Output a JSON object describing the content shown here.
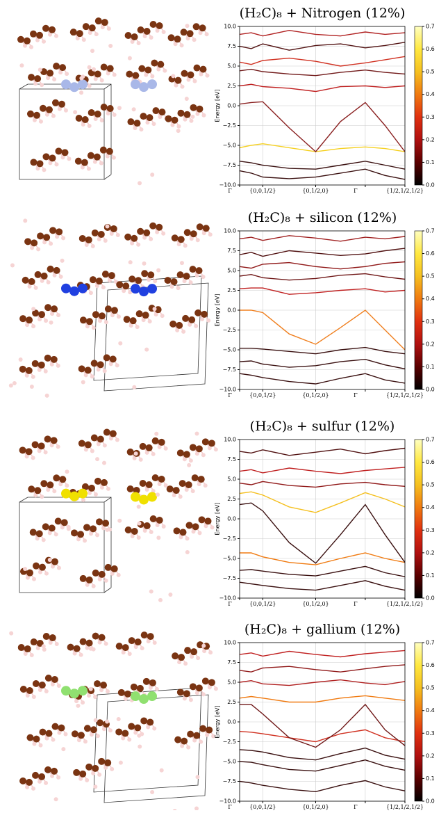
{
  "chart_data": [
    {
      "type": "line",
      "title": "(H₂C)₈ + Nitrogen (12%)",
      "ylabel": "Energy [eV]",
      "grid": true,
      "xlim": [
        0,
        1
      ],
      "ylim": [
        -10,
        10
      ],
      "xticks": [
        {
          "value": 0,
          "label": "Γ"
        },
        {
          "value": 0.14,
          "label": "{0,0,1/2}"
        },
        {
          "value": 0.46,
          "label": "{0,1/2,0}"
        },
        {
          "value": 0.76,
          "label": "Γ"
        },
        {
          "value": 1,
          "label": "{1/2,1/2,1/2}"
        }
      ],
      "yticks": [
        {
          "value": -10,
          "label": "−10.0"
        },
        {
          "value": -7.5,
          "label": "−7.5"
        },
        {
          "value": -5,
          "label": "−5.0"
        },
        {
          "value": -2.5,
          "label": "−2.5"
        },
        {
          "value": 0,
          "label": "0.0"
        },
        {
          "value": 2.5,
          "label": "2.5"
        },
        {
          "value": 5,
          "label": "5.0"
        },
        {
          "value": 7.5,
          "label": "7.5"
        },
        {
          "value": 10,
          "label": "10.0"
        }
      ],
      "colorbar": {
        "lim": [
          0,
          0.7
        ],
        "ticks": [
          {
            "value": 0,
            "label": "0.0"
          },
          0.1,
          0.2,
          0.3,
          0.4,
          0.5,
          0.6,
          0.7
        ],
        "colors": [
          "#000000",
          "#5a0000",
          "#b01010",
          "#e03010",
          "#f07a10",
          "#f5c020",
          "#ffe840",
          "#ffffc0"
        ]
      },
      "x": [
        0,
        0.07,
        0.14,
        0.3,
        0.46,
        0.61,
        0.76,
        0.88,
        1
      ],
      "series": [
        {
          "color": "#3a1010",
          "values": [
            -8.2,
            -8.5,
            -9,
            -9.2,
            -9,
            -8.5,
            -8,
            -8.8,
            -9.3
          ]
        },
        {
          "color": "#3a1010",
          "values": [
            -7,
            -7.2,
            -7.5,
            -7.9,
            -8,
            -7.5,
            -7,
            -7.5,
            -8
          ]
        },
        {
          "color": "#f5d020",
          "values": [
            -5.3,
            -5,
            -4.8,
            -5.3,
            -5.8,
            -5.4,
            -5.2,
            -5.4,
            -5.8
          ]
        },
        {
          "color": "#8a2020",
          "values": [
            0.2,
            0.4,
            0.5,
            -2.8,
            -5.8,
            -2,
            0.4,
            -2.5,
            -5.8
          ]
        },
        {
          "color": "#c02020",
          "values": [
            2.5,
            2.7,
            2.4,
            2.2,
            1.8,
            2.4,
            2.5,
            2.3,
            2.5
          ]
        },
        {
          "color": "#701818",
          "values": [
            4.4,
            4.6,
            4.3,
            4,
            3.8,
            4.2,
            4.5,
            4.2,
            4
          ]
        },
        {
          "color": "#d03020",
          "values": [
            5.5,
            5.2,
            5.7,
            6,
            5.6,
            5,
            5.4,
            5.8,
            6.2
          ]
        },
        {
          "color": "#501010",
          "values": [
            7.5,
            7.2,
            7.8,
            7,
            7.6,
            7.8,
            7.3,
            7.6,
            8
          ]
        },
        {
          "color": "#b02020",
          "values": [
            9,
            9.2,
            8.8,
            9.5,
            9,
            8.8,
            9.3,
            9,
            9.2
          ]
        }
      ]
    },
    {
      "type": "line",
      "title": "(H₂C)₈ + silicon (12%)",
      "ylabel": "Energy [eV]",
      "grid": true,
      "xlim": [
        0,
        1
      ],
      "ylim": [
        -10,
        10
      ],
      "xticks": [
        {
          "value": 0,
          "label": "Γ"
        },
        {
          "value": 0.14,
          "label": "{0,0,1/2}"
        },
        {
          "value": 0.46,
          "label": "{0,1/2,0}"
        },
        {
          "value": 0.76,
          "label": "Γ"
        },
        {
          "value": 1,
          "label": "{1/2,1/2,1/2}"
        }
      ],
      "yticks": [
        {
          "value": -10,
          "label": "−10.0"
        },
        {
          "value": -7.5,
          "label": "−7.5"
        },
        {
          "value": -5,
          "label": "−5.0"
        },
        {
          "value": -2.5,
          "label": "−2.5"
        },
        {
          "value": 0,
          "label": "0.0"
        },
        {
          "value": 2.5,
          "label": "2.5"
        },
        {
          "value": 5,
          "label": "5.0"
        },
        {
          "value": 7.5,
          "label": "7.5"
        },
        {
          "value": 10,
          "label": "10.0"
        }
      ],
      "colorbar": {
        "lim": [
          0,
          0.7
        ],
        "ticks": [
          {
            "value": 0,
            "label": "0.0"
          },
          0.1,
          0.2,
          0.3,
          0.4,
          0.5,
          0.6,
          0.7
        ],
        "colors": [
          "#000000",
          "#5a0000",
          "#b01010",
          "#e03010",
          "#f07a10",
          "#f5c020",
          "#ffe840",
          "#ffffc0"
        ]
      },
      "x": [
        0,
        0.07,
        0.14,
        0.3,
        0.46,
        0.61,
        0.76,
        0.88,
        1
      ],
      "series": [
        {
          "color": "#3a1010",
          "values": [
            -8,
            -8.2,
            -8.5,
            -9,
            -9.3,
            -8.6,
            -8,
            -8.8,
            -9.2
          ]
        },
        {
          "color": "#3a1010",
          "values": [
            -6.5,
            -6.4,
            -6.8,
            -7.2,
            -7,
            -6.5,
            -6.2,
            -6.9,
            -7.4
          ]
        },
        {
          "color": "#3a1010",
          "values": [
            -4.8,
            -4.8,
            -4.9,
            -5.2,
            -5.5,
            -5,
            -4.7,
            -5.2,
            -5.5
          ]
        },
        {
          "color": "#f08020",
          "values": [
            0,
            0,
            -0.3,
            -3,
            -4.3,
            -2.2,
            0,
            -2.5,
            -5
          ]
        },
        {
          "color": "#c02020",
          "values": [
            2.7,
            2.8,
            2.8,
            2,
            2.2,
            2.5,
            2.7,
            2.3,
            2.5
          ]
        },
        {
          "color": "#701818",
          "values": [
            4.3,
            4.5,
            4.1,
            3.8,
            4,
            4.4,
            4.6,
            4.2,
            3.9
          ]
        },
        {
          "color": "#901818",
          "values": [
            5.5,
            5.3,
            5.8,
            6,
            5.5,
            5.2,
            5.5,
            5.9,
            6.1
          ]
        },
        {
          "color": "#501010",
          "values": [
            7,
            7.3,
            6.8,
            7.5,
            7.2,
            6.9,
            7.1,
            7.5,
            7.8
          ]
        },
        {
          "color": "#a02020",
          "values": [
            9,
            9.2,
            8.8,
            9.4,
            9.1,
            8.7,
            9.2,
            9,
            9.3
          ]
        }
      ]
    },
    {
      "type": "line",
      "title": "(H₂C)₈ + sulfur (12%)",
      "ylabel": "Energy [eV]",
      "grid": true,
      "xlim": [
        0,
        1
      ],
      "ylim": [
        -10,
        10
      ],
      "xticks": [
        {
          "value": 0,
          "label": "Γ"
        },
        {
          "value": 0.14,
          "label": "{0,0,1/2}"
        },
        {
          "value": 0.46,
          "label": "{0,1/2,0}"
        },
        {
          "value": 0.76,
          "label": "Γ"
        },
        {
          "value": 1,
          "label": "{1/2,1/2,1/2}"
        }
      ],
      "yticks": [
        {
          "value": -10,
          "label": "−10.0"
        },
        {
          "value": -7.5,
          "label": "−7.5"
        },
        {
          "value": -5,
          "label": "−5.0"
        },
        {
          "value": -2.5,
          "label": "−2.5"
        },
        {
          "value": 0,
          "label": "0.0"
        },
        {
          "value": 2.5,
          "label": "2.5"
        },
        {
          "value": 5,
          "label": "5.0"
        },
        {
          "value": 7.5,
          "label": "7.5"
        },
        {
          "value": 10,
          "label": "10.0"
        }
      ],
      "colorbar": {
        "lim": [
          0,
          0.7
        ],
        "ticks": [
          {
            "value": 0,
            "label": "0.0"
          },
          0.1,
          0.2,
          0.3,
          0.4,
          0.5,
          0.6,
          0.7
        ],
        "colors": [
          "#000000",
          "#5a0000",
          "#b01010",
          "#e03010",
          "#f07a10",
          "#f5c020",
          "#ffe840",
          "#ffffc0"
        ]
      },
      "x": [
        0,
        0.07,
        0.14,
        0.3,
        0.46,
        0.61,
        0.76,
        0.88,
        1
      ],
      "series": [
        {
          "color": "#3a1010",
          "values": [
            -8,
            -8.2,
            -8.4,
            -8.8,
            -9,
            -8.4,
            -7.8,
            -8.5,
            -9
          ]
        },
        {
          "color": "#3a1010",
          "values": [
            -6.5,
            -6.4,
            -6.6,
            -7,
            -7.2,
            -6.6,
            -6,
            -6.8,
            -7.3
          ]
        },
        {
          "color": "#f07a10",
          "values": [
            -4.3,
            -4.3,
            -4.8,
            -5.5,
            -5.8,
            -5,
            -4.3,
            -5,
            -5.5
          ]
        },
        {
          "color": "#3a1010",
          "values": [
            1.8,
            2,
            1,
            -3,
            -5.6,
            -2,
            1.8,
            -2,
            -5.5
          ]
        },
        {
          "color": "#f5c020",
          "values": [
            3.2,
            3.4,
            3,
            1.5,
            0.8,
            2,
            3.3,
            2.5,
            1.5
          ]
        },
        {
          "color": "#901818",
          "values": [
            4.5,
            4.3,
            4.7,
            4.2,
            4,
            4.4,
            4.6,
            4.3,
            4.1
          ]
        },
        {
          "color": "#c02020",
          "values": [
            6,
            6.2,
            5.8,
            6.4,
            6,
            5.7,
            6.1,
            6.3,
            6.5
          ]
        },
        {
          "color": "#501010",
          "values": [
            8.5,
            8.3,
            8.7,
            8,
            8.4,
            8.8,
            8.2,
            8.6,
            8.9
          ]
        }
      ]
    },
    {
      "type": "line",
      "title": "(H₂C)₈ + gallium (12%)",
      "ylabel": "Energy [eV]",
      "grid": true,
      "xlim": [
        0,
        1
      ],
      "ylim": [
        -10,
        10
      ],
      "xticks": [
        {
          "value": 0,
          "label": "Γ"
        },
        {
          "value": 0.14,
          "label": "{0,0,1/2}"
        },
        {
          "value": 0.46,
          "label": "{0,1/2,0}"
        },
        {
          "value": 0.76,
          "label": "Γ"
        },
        {
          "value": 1,
          "label": "{1/2,1/2,1/2}"
        }
      ],
      "yticks": [
        {
          "value": -10,
          "label": "−10.0"
        },
        {
          "value": -7.5,
          "label": "−7.5"
        },
        {
          "value": -5,
          "label": "−5.0"
        },
        {
          "value": -2.5,
          "label": "−2.5"
        },
        {
          "value": 0,
          "label": "0.0"
        },
        {
          "value": 2.5,
          "label": "2.5"
        },
        {
          "value": 5,
          "label": "5.0"
        },
        {
          "value": 7.5,
          "label": "7.5"
        },
        {
          "value": 10,
          "label": "10.0"
        }
      ],
      "colorbar": {
        "lim": [
          0,
          0.7
        ],
        "ticks": [
          {
            "value": 0,
            "label": "0.0"
          },
          0.1,
          0.2,
          0.3,
          0.4,
          0.5,
          0.6,
          0.7
        ],
        "colors": [
          "#000000",
          "#5a0000",
          "#b01010",
          "#e03010",
          "#f07a10",
          "#f5c020",
          "#ffe840",
          "#ffffc0"
        ]
      },
      "x": [
        0,
        0.07,
        0.14,
        0.3,
        0.46,
        0.61,
        0.76,
        0.88,
        1
      ],
      "series": [
        {
          "color": "#3a1010",
          "values": [
            -7.5,
            -7.7,
            -8,
            -8.5,
            -8.8,
            -8,
            -7.4,
            -8.2,
            -8.7
          ]
        },
        {
          "color": "#3a1010",
          "values": [
            -5,
            -5.1,
            -5.4,
            -6,
            -6.2,
            -5.5,
            -4.8,
            -5.6,
            -6.1
          ]
        },
        {
          "color": "#3a1010",
          "values": [
            -3.5,
            -3.6,
            -3.8,
            -4.5,
            -4.8,
            -4,
            -3.3,
            -4.2,
            -4.7
          ]
        },
        {
          "color": "#d03020",
          "values": [
            -1.2,
            -1.3,
            -1.5,
            -2,
            -2.5,
            -1.5,
            -1,
            -2,
            -2.5
          ]
        },
        {
          "color": "#701818",
          "values": [
            2.2,
            2.2,
            1,
            -2,
            -3.2,
            -1,
            2.2,
            -1,
            -3
          ]
        },
        {
          "color": "#f07a10",
          "values": [
            3,
            3.2,
            3,
            2.5,
            2.5,
            3,
            3.3,
            3,
            2.7
          ]
        },
        {
          "color": "#b02020",
          "values": [
            5,
            5.2,
            4.8,
            4.6,
            5,
            5.3,
            4.9,
            4.7,
            5.1
          ]
        },
        {
          "color": "#901818",
          "values": [
            6.5,
            6.3,
            6.8,
            7,
            6.6,
            6.3,
            6.7,
            7,
            7.2
          ]
        },
        {
          "color": "#c02020",
          "values": [
            8.5,
            8.7,
            8.3,
            8.9,
            8.5,
            8.2,
            8.6,
            8.8,
            9
          ]
        }
      ]
    }
  ]
}
